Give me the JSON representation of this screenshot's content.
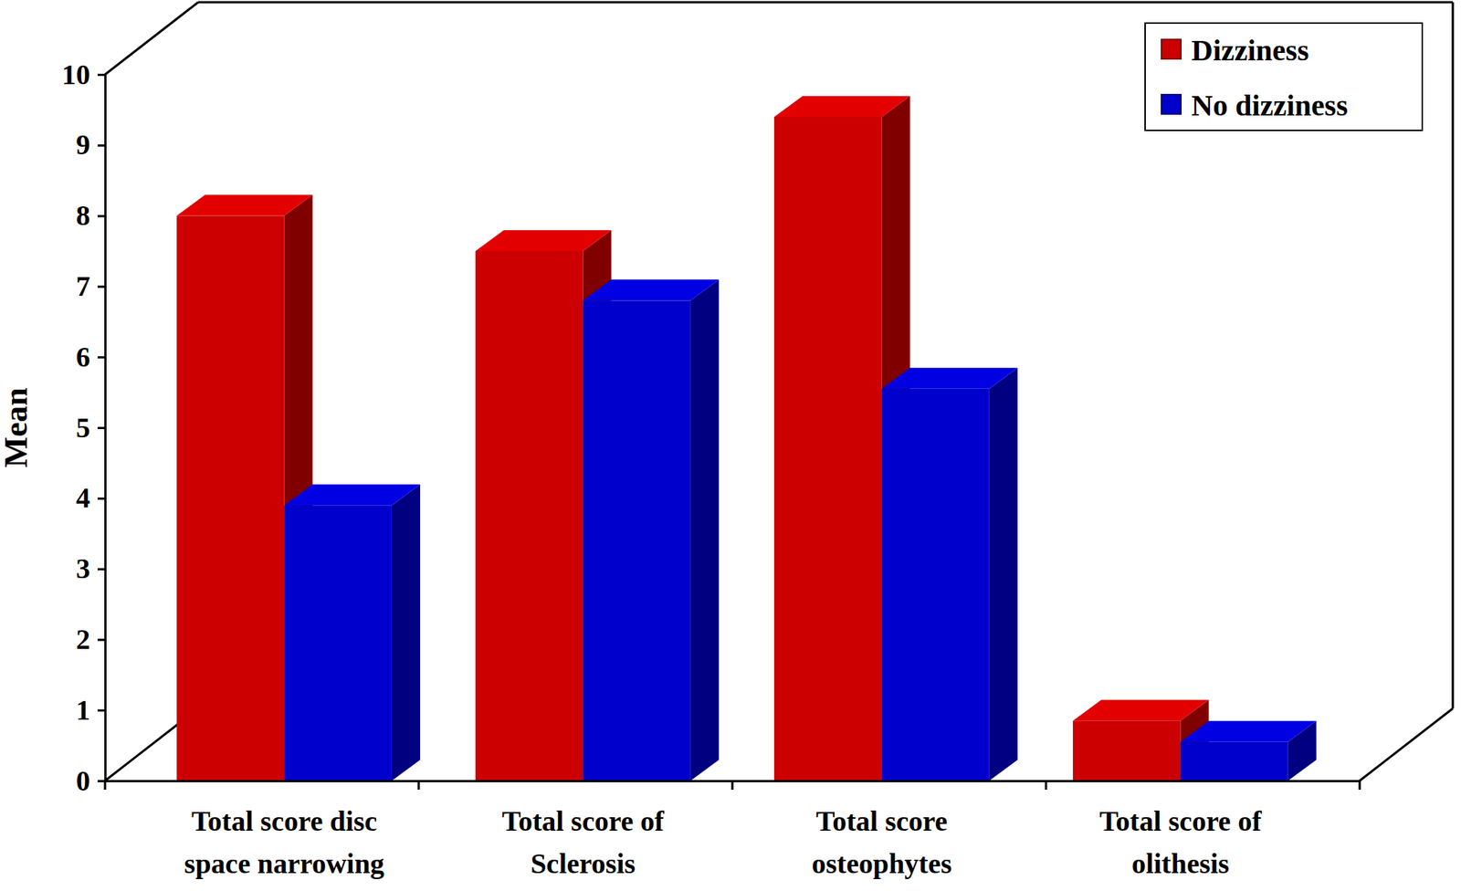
{
  "chart_data": {
    "type": "bar",
    "y_label": "Mean",
    "categories": [
      "Total score disc space narrowing",
      "Total score of Sclerosis",
      "Total score osteophytes",
      "Total score of olithesis"
    ],
    "series": [
      {
        "name": "Dizziness",
        "color": "#cc0000",
        "values": [
          8.0,
          7.5,
          9.4,
          0.85
        ]
      },
      {
        "name": "No dizziness",
        "color": "#0000cc",
        "values": [
          3.9,
          6.8,
          5.55,
          0.55
        ]
      }
    ],
    "ylim": [
      0,
      10
    ],
    "yticks": [
      0,
      1,
      2,
      3,
      4,
      5,
      6,
      7,
      8,
      9,
      10
    ],
    "legend": "top-right"
  }
}
